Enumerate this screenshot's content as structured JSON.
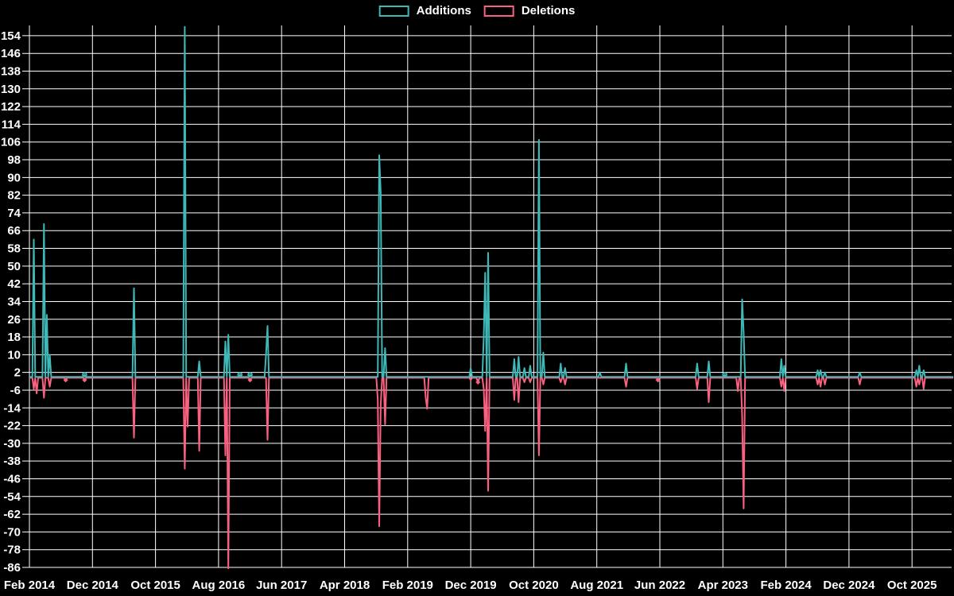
{
  "chart_data": {
    "type": "line",
    "title": "",
    "background_color": "#000000",
    "grid_color": "#ffffff",
    "text_color": "#ffffff",
    "legend": [
      {
        "label": "Additions",
        "color": "#3fb8b8"
      },
      {
        "label": "Deletions",
        "color": "#fa6080"
      }
    ],
    "y_axis": {
      "min": -86,
      "max": 154,
      "step": 8
    },
    "y_tick_labels": [
      154,
      146,
      138,
      130,
      122,
      114,
      106,
      98,
      90,
      82,
      74,
      66,
      58,
      50,
      42,
      34,
      26,
      18,
      10,
      2,
      -6,
      -14,
      -22,
      -30,
      -38,
      -46,
      -54,
      -62,
      -70,
      -78,
      -86
    ],
    "x_tick_labels": [
      "Feb 2014",
      "Dec 2014",
      "Oct 2015",
      "Aug 2016",
      "Jun 2017",
      "Apr 2018",
      "Feb 2019",
      "Dec 2019",
      "Oct 2020",
      "Aug 2021",
      "Jun 2022",
      "Apr 2023",
      "Feb 2024",
      "Dec 2024",
      "Oct 2025"
    ],
    "x_unit": "weeks",
    "weeks_per_tick": 43.43,
    "total_weeks": 636,
    "baseline_value": 0,
    "series": [
      {
        "name": "Additions",
        "color": "#3fb8b8",
        "marker": "circle",
        "spikes": [
          [
            3,
            62
          ],
          [
            10,
            69
          ],
          [
            12,
            28
          ],
          [
            14,
            10
          ],
          [
            38,
            1
          ],
          [
            72,
            40
          ],
          [
            107,
            158
          ],
          [
            117,
            7
          ],
          [
            135,
            16
          ],
          [
            137,
            19
          ],
          [
            145,
            1
          ],
          [
            152,
            1
          ],
          [
            163,
            10
          ],
          [
            164,
            23
          ],
          [
            241,
            100
          ],
          [
            242,
            83
          ],
          [
            245,
            13
          ],
          [
            304,
            4
          ],
          [
            313,
            18
          ],
          [
            314,
            47
          ],
          [
            316,
            56
          ],
          [
            334,
            8
          ],
          [
            337,
            9
          ],
          [
            341,
            4
          ],
          [
            345,
            5
          ],
          [
            351,
            107
          ],
          [
            354,
            11
          ],
          [
            366,
            6
          ],
          [
            369,
            4
          ],
          [
            393,
            2
          ],
          [
            411,
            6
          ],
          [
            460,
            6
          ],
          [
            468,
            7
          ],
          [
            479,
            1
          ],
          [
            491,
            35
          ],
          [
            492,
            20
          ],
          [
            518,
            8
          ],
          [
            520,
            5
          ],
          [
            543,
            3
          ],
          [
            545,
            3
          ],
          [
            548,
            2
          ],
          [
            572,
            2
          ],
          [
            611,
            3
          ],
          [
            613,
            5
          ],
          [
            616,
            3
          ]
        ],
        "marker_weeks": [
          38,
          145,
          152,
          479
        ]
      },
      {
        "name": "Deletions",
        "color": "#fa6080",
        "marker": "diamond",
        "spikes": [
          [
            3,
            -5
          ],
          [
            5,
            -7
          ],
          [
            10,
            -9
          ],
          [
            14,
            -4
          ],
          [
            25,
            -1
          ],
          [
            38,
            -1
          ],
          [
            72,
            -27
          ],
          [
            107,
            -41
          ],
          [
            109,
            -22
          ],
          [
            117,
            -33
          ],
          [
            135,
            -35
          ],
          [
            137,
            -86
          ],
          [
            152,
            -1
          ],
          [
            164,
            -28
          ],
          [
            240,
            -10
          ],
          [
            241,
            -67
          ],
          [
            242,
            -12
          ],
          [
            245,
            -21
          ],
          [
            273,
            -9
          ],
          [
            274,
            -14
          ],
          [
            304,
            -1
          ],
          [
            309,
            -2
          ],
          [
            313,
            -5
          ],
          [
            314,
            -24
          ],
          [
            316,
            -51
          ],
          [
            334,
            -10
          ],
          [
            337,
            -11
          ],
          [
            341,
            -2
          ],
          [
            345,
            -2
          ],
          [
            351,
            -35
          ],
          [
            354,
            -3
          ],
          [
            366,
            -2
          ],
          [
            369,
            -3
          ],
          [
            411,
            -4
          ],
          [
            433,
            -1
          ],
          [
            460,
            -5
          ],
          [
            468,
            -11
          ],
          [
            488,
            -6
          ],
          [
            491,
            -17
          ],
          [
            492,
            -59
          ],
          [
            518,
            -4
          ],
          [
            520,
            -6
          ],
          [
            543,
            -3
          ],
          [
            545,
            -4
          ],
          [
            548,
            -3
          ],
          [
            572,
            -3
          ],
          [
            611,
            -4
          ],
          [
            613,
            -3
          ],
          [
            616,
            -5
          ]
        ],
        "marker_weeks": [
          25,
          38,
          152,
          309,
          433
        ]
      }
    ]
  }
}
